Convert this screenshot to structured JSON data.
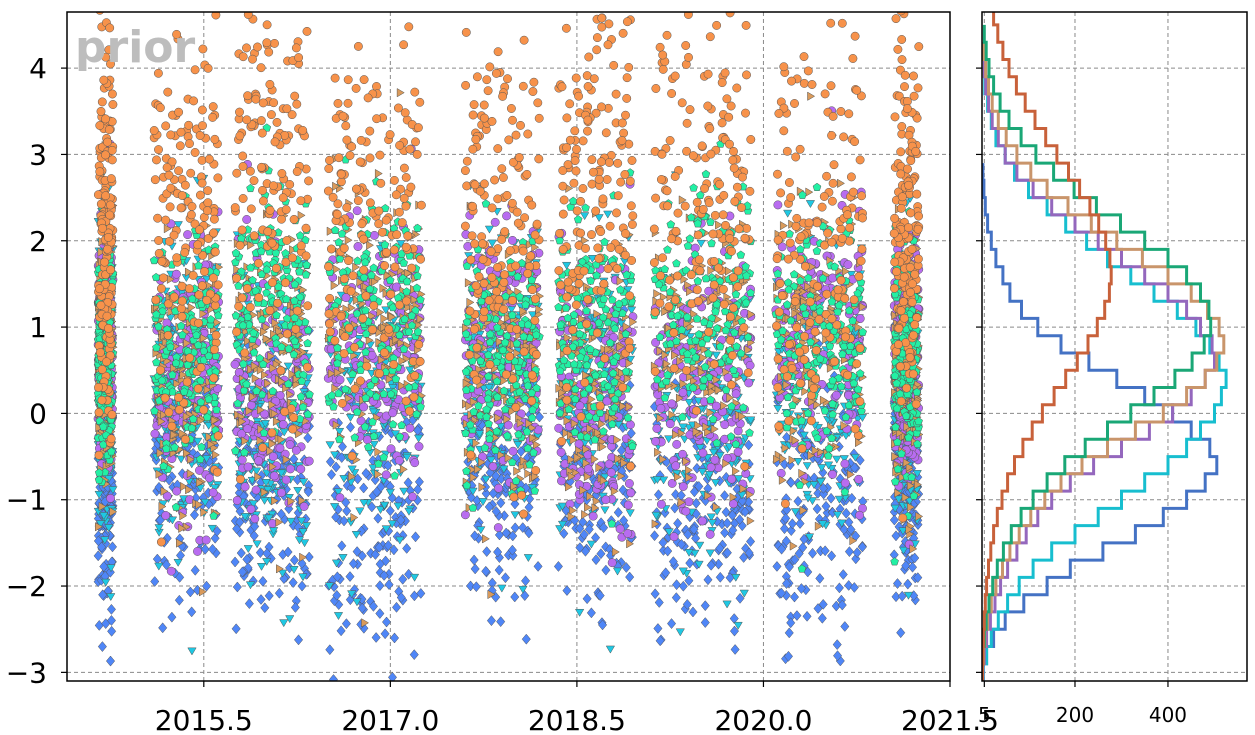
{
  "watermark": "prior",
  "chart_data": [
    {
      "type": "scatter",
      "title": "",
      "xlabel": "",
      "ylabel": "",
      "xlim": [
        2014.4,
        2021.5
      ],
      "ylim": [
        -3.1,
        4.65
      ],
      "x_ticks": [
        2015.5,
        2017.0,
        2018.5,
        2020.0,
        2021.5
      ],
      "x_tick_labels": [
        "2015.5",
        "2017.0",
        "2018.5",
        "2020.0",
        "2021.5"
      ],
      "y_ticks": [
        -3,
        -2,
        -1,
        0,
        1,
        2,
        3,
        4
      ],
      "y_tick_labels": [
        "−3",
        "−2",
        "−1",
        "0",
        "1",
        "2",
        "3",
        "4"
      ],
      "grid": true,
      "legend": "none",
      "observation_clusters": [
        {
          "start": 2014.65,
          "end": 2014.77
        },
        {
          "start": 2015.1,
          "end": 2015.62
        },
        {
          "start": 2015.75,
          "end": 2016.35
        },
        {
          "start": 2016.5,
          "end": 2017.25
        },
        {
          "start": 2017.6,
          "end": 2018.2
        },
        {
          "start": 2018.35,
          "end": 2018.95
        },
        {
          "start": 2019.12,
          "end": 2019.9
        },
        {
          "start": 2020.1,
          "end": 2020.8
        },
        {
          "start": 2021.05,
          "end": 2021.25
        }
      ],
      "series": [
        {
          "marker": "diamond",
          "color": "#4f86f7",
          "mean": -0.9,
          "sd": 0.8
        },
        {
          "marker": "triangle-down",
          "color": "#1fc8e3",
          "mean": 0.15,
          "sd": 0.9
        },
        {
          "marker": "circle",
          "color": "#b86cf0",
          "mean": 0.5,
          "sd": 0.75
        },
        {
          "marker": "triangle-right",
          "color": "#d99a5b",
          "mean": 0.65,
          "sd": 0.8
        },
        {
          "marker": "pentagon",
          "color": "#22f0a4",
          "mean": 0.95,
          "sd": 0.7
        },
        {
          "marker": "circle",
          "color": "#f7924a",
          "mean": 2.4,
          "sd": 1.2
        }
      ]
    },
    {
      "type": "step-histogram",
      "orientation": "horizontal",
      "xlim": [
        0,
        570
      ],
      "ylim": [
        -3.1,
        4.65
      ],
      "x_ticks": [
        5,
        200,
        400
      ],
      "x_tick_labels": [
        "5",
        "200",
        "400"
      ],
      "grid": true,
      "series": [
        {
          "color": "#4472c4",
          "bins": [
            [
              -3.1,
              2
            ],
            [
              -2.9,
              10
            ],
            [
              -2.7,
              25
            ],
            [
              -2.5,
              50
            ],
            [
              -2.3,
              90
            ],
            [
              -2.1,
              140
            ],
            [
              -1.9,
              190
            ],
            [
              -1.7,
              260
            ],
            [
              -1.5,
              330
            ],
            [
              -1.3,
              390
            ],
            [
              -1.1,
              440
            ],
            [
              -0.9,
              480
            ],
            [
              -0.7,
              505
            ],
            [
              -0.5,
              490
            ],
            [
              -0.3,
              450
            ],
            [
              -0.1,
              410
            ],
            [
              0.1,
              350
            ],
            [
              0.3,
              290
            ],
            [
              0.5,
              230
            ],
            [
              0.7,
              170
            ],
            [
              0.9,
              120
            ],
            [
              1.1,
              85
            ],
            [
              1.3,
              60
            ],
            [
              1.5,
              45
            ],
            [
              1.7,
              30
            ],
            [
              1.9,
              20
            ],
            [
              2.1,
              12
            ],
            [
              2.3,
              7
            ],
            [
              2.5,
              4
            ],
            [
              2.7,
              2
            ]
          ]
        },
        {
          "color": "#17becf",
          "bins": [
            [
              -3.1,
              3
            ],
            [
              -2.9,
              10
            ],
            [
              -2.7,
              20
            ],
            [
              -2.5,
              35
            ],
            [
              -2.3,
              55
            ],
            [
              -2.1,
              80
            ],
            [
              -1.9,
              110
            ],
            [
              -1.7,
              150
            ],
            [
              -1.5,
              200
            ],
            [
              -1.3,
              250
            ],
            [
              -1.1,
              300
            ],
            [
              -0.9,
              350
            ],
            [
              -0.7,
              400
            ],
            [
              -0.5,
              440
            ],
            [
              -0.3,
              470
            ],
            [
              -0.1,
              500
            ],
            [
              0.1,
              515
            ],
            [
              0.3,
              525
            ],
            [
              0.5,
              510
            ],
            [
              0.7,
              490
            ],
            [
              0.9,
              460
            ],
            [
              1.1,
              420
            ],
            [
              1.3,
              370
            ],
            [
              1.5,
              320
            ],
            [
              1.7,
              270
            ],
            [
              1.9,
              225
            ],
            [
              2.1,
              180
            ],
            [
              2.3,
              140
            ],
            [
              2.5,
              100
            ],
            [
              2.7,
              70
            ],
            [
              2.9,
              50
            ],
            [
              3.1,
              30
            ],
            [
              3.3,
              20
            ],
            [
              3.5,
              12
            ],
            [
              3.7,
              6
            ]
          ]
        },
        {
          "color": "#9467bd",
          "bins": [
            [
              -3.1,
              2
            ],
            [
              -2.9,
              5
            ],
            [
              -2.7,
              10
            ],
            [
              -2.5,
              18
            ],
            [
              -2.3,
              28
            ],
            [
              -2.1,
              40
            ],
            [
              -1.9,
              55
            ],
            [
              -1.7,
              75
            ],
            [
              -1.5,
              95
            ],
            [
              -1.3,
              120
            ],
            [
              -1.1,
              150
            ],
            [
              -0.9,
              190
            ],
            [
              -0.7,
              240
            ],
            [
              -0.5,
              300
            ],
            [
              -0.3,
              360
            ],
            [
              -0.1,
              410
            ],
            [
              0.1,
              450
            ],
            [
              0.3,
              480
            ],
            [
              0.5,
              500
            ],
            [
              0.7,
              495
            ],
            [
              0.9,
              470
            ],
            [
              1.1,
              440
            ],
            [
              1.3,
              400
            ],
            [
              1.5,
              350
            ],
            [
              1.7,
              300
            ],
            [
              1.9,
              250
            ],
            [
              2.1,
              200
            ],
            [
              2.3,
              150
            ],
            [
              2.5,
              110
            ],
            [
              2.7,
              75
            ],
            [
              2.9,
              50
            ],
            [
              3.1,
              35
            ],
            [
              3.3,
              22
            ],
            [
              3.5,
              14
            ],
            [
              3.7,
              8
            ],
            [
              3.9,
              5
            ],
            [
              4.1,
              3
            ]
          ]
        },
        {
          "color": "#c9956b",
          "bins": [
            [
              -3.1,
              1
            ],
            [
              -2.9,
              3
            ],
            [
              -2.7,
              6
            ],
            [
              -2.5,
              12
            ],
            [
              -2.3,
              20
            ],
            [
              -2.1,
              30
            ],
            [
              -1.9,
              44
            ],
            [
              -1.7,
              60
            ],
            [
              -1.5,
              80
            ],
            [
              -1.3,
              105
            ],
            [
              -1.1,
              135
            ],
            [
              -0.9,
              170
            ],
            [
              -0.7,
              215
            ],
            [
              -0.5,
              270
            ],
            [
              -0.3,
              330
            ],
            [
              -0.1,
              390
            ],
            [
              0.1,
              440
            ],
            [
              0.3,
              480
            ],
            [
              0.5,
              505
            ],
            [
              0.7,
              520
            ],
            [
              0.9,
              510
            ],
            [
              1.1,
              485
            ],
            [
              1.3,
              450
            ],
            [
              1.5,
              400
            ],
            [
              1.7,
              345
            ],
            [
              1.9,
              290
            ],
            [
              2.1,
              235
            ],
            [
              2.3,
              185
            ],
            [
              2.5,
              140
            ],
            [
              2.7,
              105
            ],
            [
              2.9,
              75
            ],
            [
              3.1,
              52
            ],
            [
              3.3,
              35
            ],
            [
              3.5,
              22
            ],
            [
              3.7,
              14
            ],
            [
              3.9,
              8
            ],
            [
              4.1,
              4
            ]
          ]
        },
        {
          "color": "#1aa776",
          "bins": [
            [
              -3.1,
              1
            ],
            [
              -2.9,
              2
            ],
            [
              -2.7,
              5
            ],
            [
              -2.5,
              9
            ],
            [
              -2.3,
              15
            ],
            [
              -2.1,
              23
            ],
            [
              -1.9,
              33
            ],
            [
              -1.7,
              46
            ],
            [
              -1.5,
              63
            ],
            [
              -1.3,
              84
            ],
            [
              -1.1,
              110
            ],
            [
              -0.9,
              140
            ],
            [
              -0.7,
              178
            ],
            [
              -0.5,
              222
            ],
            [
              -0.3,
              270
            ],
            [
              -0.1,
              320
            ],
            [
              0.1,
              370
            ],
            [
              0.3,
              415
            ],
            [
              0.5,
              452
            ],
            [
              0.7,
              478
            ],
            [
              0.9,
              492
            ],
            [
              1.1,
              488
            ],
            [
              1.3,
              470
            ],
            [
              1.5,
              440
            ],
            [
              1.7,
              400
            ],
            [
              1.9,
              350
            ],
            [
              2.1,
              298
            ],
            [
              2.3,
              246
            ],
            [
              2.5,
              198
            ],
            [
              2.7,
              154
            ],
            [
              2.9,
              116
            ],
            [
              3.1,
              84
            ],
            [
              3.3,
              58
            ],
            [
              3.5,
              39
            ],
            [
              3.7,
              25
            ],
            [
              3.9,
              15
            ],
            [
              4.1,
              9
            ],
            [
              4.3,
              5
            ]
          ]
        },
        {
          "color": "#c8613a",
          "bins": [
            [
              -3.1,
              1
            ],
            [
              -2.9,
              2
            ],
            [
              -2.7,
              3
            ],
            [
              -2.5,
              5
            ],
            [
              -2.3,
              7
            ],
            [
              -2.1,
              10
            ],
            [
              -1.9,
              14
            ],
            [
              -1.7,
              19
            ],
            [
              -1.5,
              25
            ],
            [
              -1.3,
              33
            ],
            [
              -1.1,
              43
            ],
            [
              -0.9,
              55
            ],
            [
              -0.7,
              70
            ],
            [
              -0.5,
              88
            ],
            [
              -0.3,
              108
            ],
            [
              -0.1,
              130
            ],
            [
              0.1,
              155
            ],
            [
              0.3,
              180
            ],
            [
              0.5,
              205
            ],
            [
              0.7,
              228
            ],
            [
              0.9,
              248
            ],
            [
              1.1,
              264
            ],
            [
              1.3,
              274
            ],
            [
              1.5,
              278
            ],
            [
              1.7,
              275
            ],
            [
              1.9,
              266
            ],
            [
              2.1,
              251
            ],
            [
              2.3,
              232
            ],
            [
              2.5,
              210
            ],
            [
              2.7,
              186
            ],
            [
              2.9,
              161
            ],
            [
              3.1,
              137
            ],
            [
              3.3,
              114
            ],
            [
              3.5,
              93
            ],
            [
              3.7,
              74
            ],
            [
              3.9,
              58
            ],
            [
              4.1,
              45
            ],
            [
              4.3,
              34
            ],
            [
              4.5,
              25
            ]
          ]
        }
      ]
    }
  ]
}
